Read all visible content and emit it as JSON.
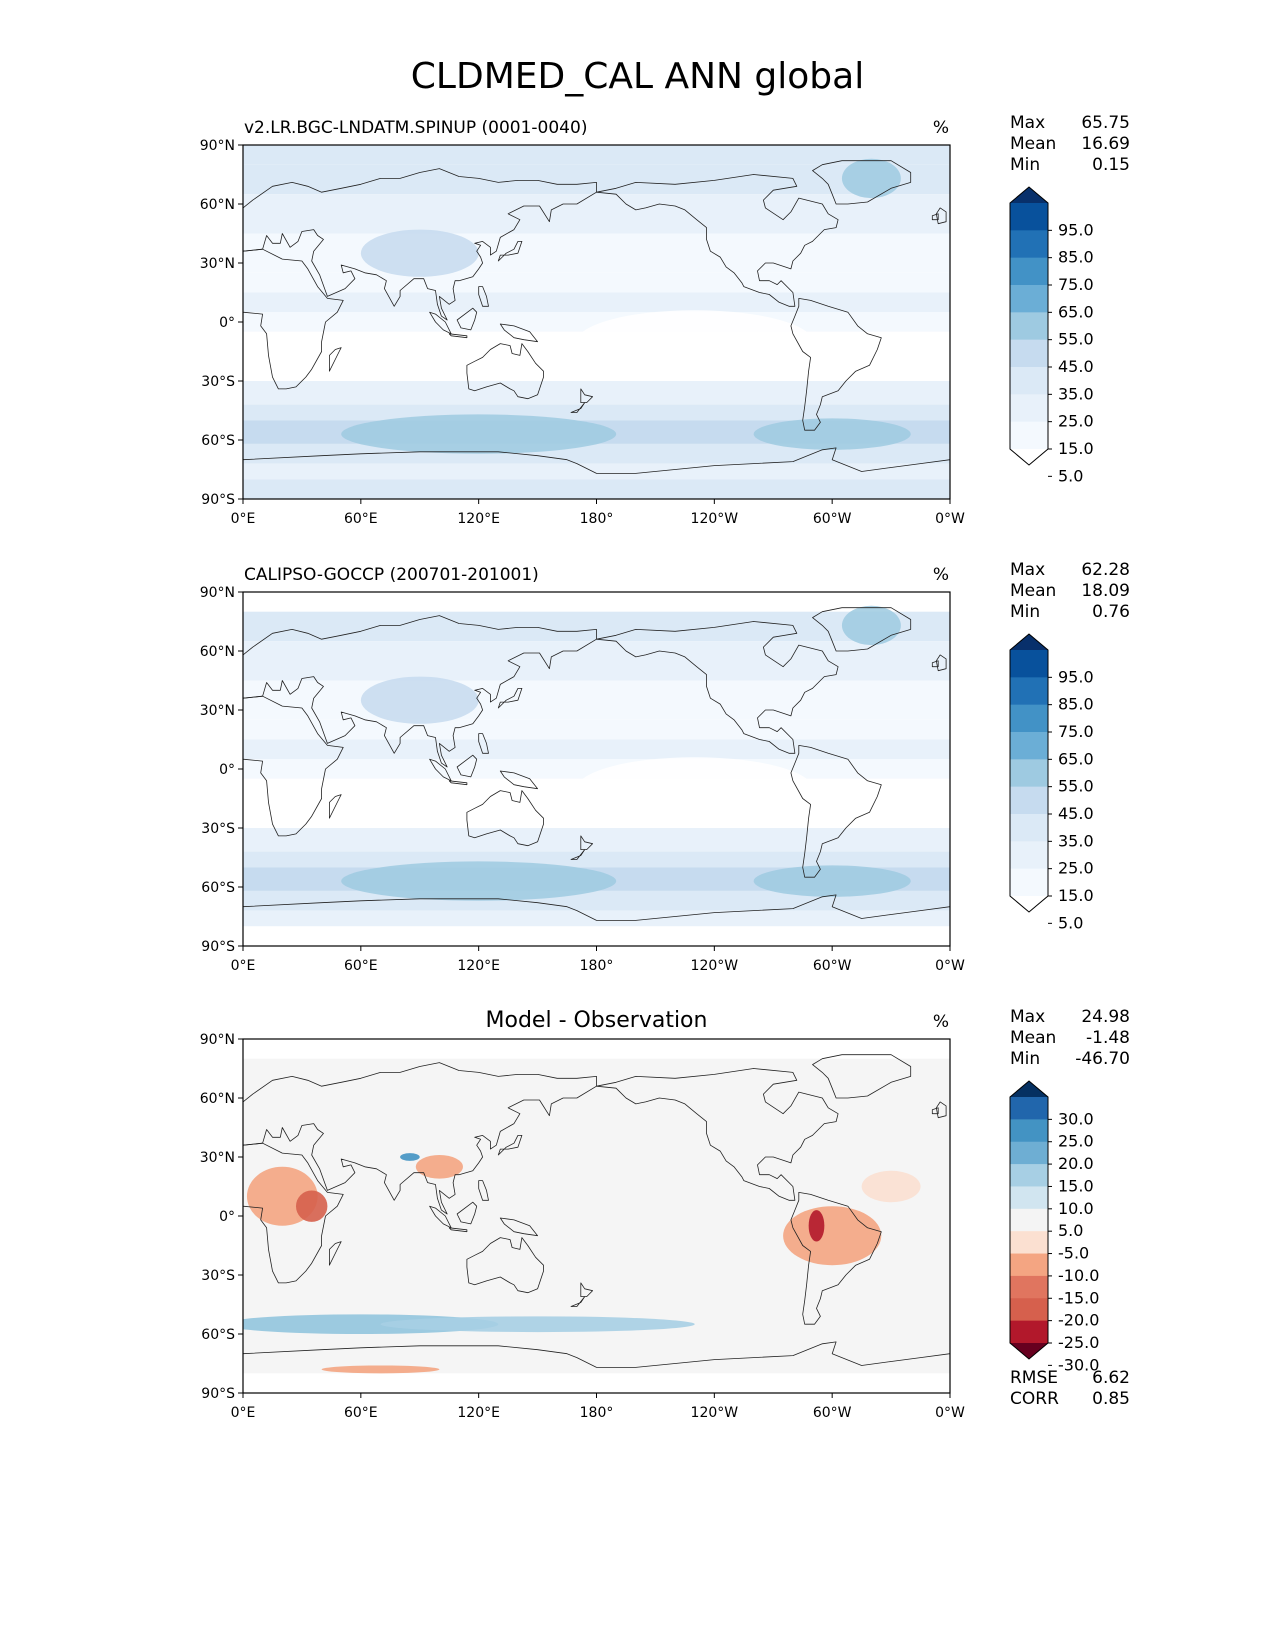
{
  "title": "CLDMED_CAL ANN global",
  "panels": [
    {
      "id": "model",
      "name": "v2.LR.BGC-LNDATM.SPINUP (0001-0040)",
      "center_title": "",
      "units": "%",
      "stats": [
        {
          "label": "Max",
          "value": "65.75"
        },
        {
          "label": "Mean",
          "value": "16.69"
        },
        {
          "label": "Min",
          "value": "0.15"
        }
      ],
      "extra_stats": [],
      "colorbar": {
        "labels": [
          "95.0",
          "85.0",
          "75.0",
          "65.0",
          "55.0",
          "45.0",
          "35.0",
          "25.0",
          "15.0",
          "5.0"
        ],
        "colors": [
          "#08306b",
          "#08519c",
          "#2171b5",
          "#4292c6",
          "#6baed6",
          "#9ecae1",
          "#c6dbef",
          "#dbe9f6",
          "#e8f1fa",
          "#f4f9fe",
          "#ffffff"
        ]
      }
    },
    {
      "id": "obs",
      "name": "CALIPSO-GOCCP (200701-201001)",
      "center_title": "",
      "units": "%",
      "stats": [
        {
          "label": "Max",
          "value": "62.28"
        },
        {
          "label": "Mean",
          "value": "18.09"
        },
        {
          "label": "Min",
          "value": "0.76"
        }
      ],
      "extra_stats": [],
      "colorbar": {
        "labels": [
          "95.0",
          "85.0",
          "75.0",
          "65.0",
          "55.0",
          "45.0",
          "35.0",
          "25.0",
          "15.0",
          "5.0"
        ],
        "colors": [
          "#08306b",
          "#08519c",
          "#2171b5",
          "#4292c6",
          "#6baed6",
          "#9ecae1",
          "#c6dbef",
          "#dbe9f6",
          "#e8f1fa",
          "#f4f9fe",
          "#ffffff"
        ]
      }
    },
    {
      "id": "diff",
      "name": "",
      "center_title": "Model - Observation",
      "units": "%",
      "stats": [
        {
          "label": "Max",
          "value": "24.98"
        },
        {
          "label": "Mean",
          "value": "-1.48"
        },
        {
          "label": "Min",
          "value": "-46.70"
        }
      ],
      "extra_stats": [
        {
          "label": "RMSE",
          "value": "6.62"
        },
        {
          "label": "CORR",
          "value": "0.85"
        }
      ],
      "colorbar": {
        "labels": [
          "30.0",
          "25.0",
          "20.0",
          "15.0",
          "10.0",
          "5.0",
          "-5.0",
          "-10.0",
          "-15.0",
          "-20.0",
          "-25.0",
          "-30.0"
        ],
        "colors": [
          "#053061",
          "#2166ac",
          "#4393c3",
          "#6eaed3",
          "#a7cfe4",
          "#d1e5f0",
          "#f4f4f4",
          "#fbe0d1",
          "#f4a582",
          "#e0755f",
          "#d6604d",
          "#b2182b",
          "#67001f"
        ]
      }
    }
  ],
  "axes": {
    "lat_ticks": [
      "90°N",
      "60°N",
      "30°N",
      "0°",
      "30°S",
      "60°S",
      "90°S"
    ],
    "lon_ticks": [
      "0°E",
      "60°E",
      "120°E",
      "180°",
      "120°W",
      "60°W",
      "0°W"
    ]
  }
}
